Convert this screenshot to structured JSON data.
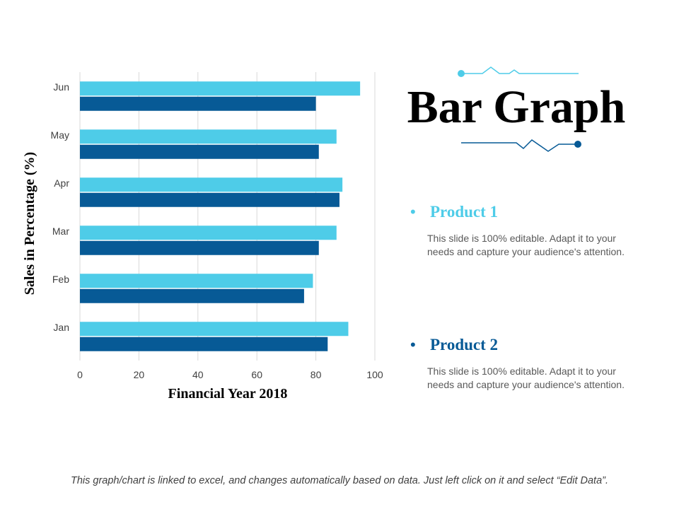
{
  "slide": {
    "title": "Bar Graph",
    "footer_note": "This graph/chart is linked to excel, and changes automatically based on data. Just left click on it and select “Edit Data”."
  },
  "colors": {
    "product1": "#4ECCE8",
    "product2": "#075A96",
    "grid": "#D9D9D9",
    "axis_text": "#404040"
  },
  "legend": [
    {
      "bullet": "•",
      "name": "Product 1",
      "color": "#4ECCE8",
      "description": "This slide is 100% editable. Adapt it to your needs and capture your audience's attention."
    },
    {
      "bullet": "•",
      "name": "Product 2",
      "color": "#075A96",
      "description": "This slide is 100% editable. Adapt it to your needs and capture your audience's attention."
    }
  ],
  "chart_data": {
    "type": "bar",
    "orientation": "horizontal",
    "categories": [
      "Jan",
      "Feb",
      "Mar",
      "Apr",
      "May",
      "Jun"
    ],
    "series": [
      {
        "name": "Product 1",
        "values": [
          91,
          79,
          87,
          89,
          87,
          95
        ]
      },
      {
        "name": "Product 2",
        "values": [
          84,
          76,
          81,
          88,
          81,
          80
        ]
      }
    ],
    "xlabel": "Financial Year 2018",
    "ylabel": "Sales in Percentage (%)",
    "xlim": [
      0,
      100
    ],
    "xticks": [
      0,
      20,
      40,
      60,
      80,
      100
    ],
    "grid": true,
    "legend": "none"
  }
}
